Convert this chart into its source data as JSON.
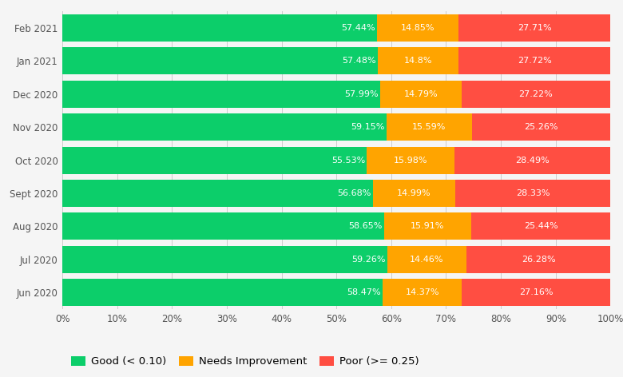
{
  "categories": [
    "Feb 2021",
    "Jan 2021",
    "Dec 2020",
    "Nov 2020",
    "Oct 2020",
    "Sept 2020",
    "Aug 2020",
    "Jul 2020",
    "Jun 2020"
  ],
  "good": [
    57.44,
    57.48,
    57.99,
    59.15,
    55.53,
    56.68,
    58.65,
    59.26,
    58.47
  ],
  "needs_improvement": [
    14.85,
    14.8,
    14.79,
    15.59,
    15.98,
    14.99,
    15.91,
    14.46,
    14.37
  ],
  "poor": [
    27.71,
    27.72,
    27.22,
    25.26,
    28.49,
    28.33,
    25.44,
    26.28,
    27.16
  ],
  "good_color": "#0CCE6A",
  "needs_color": "#FFA400",
  "poor_color": "#FF4E42",
  "good_label": "Good (< 0.10)",
  "needs_label": "Needs Improvement",
  "poor_label": "Poor (>= 0.25)",
  "bg_color": "#f5f5f5",
  "plot_bg_color": "#f5f5f5",
  "text_color_inside": "#ffffff",
  "font_size_bar": 8.0,
  "font_size_tick": 8.5,
  "font_size_legend": 9.5,
  "xlim": [
    0,
    100
  ],
  "figsize": [
    7.8,
    4.72
  ],
  "dpi": 100
}
